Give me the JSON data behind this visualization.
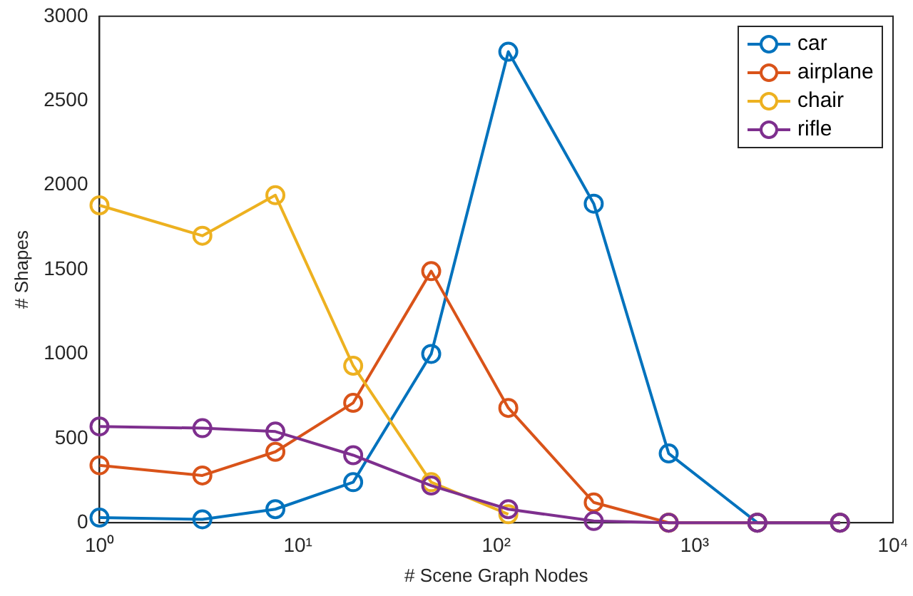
{
  "chart_data": {
    "type": "line",
    "xlabel": "# Scene Graph Nodes",
    "ylabel": "# Shapes",
    "x": [
      1,
      3.3,
      7.7,
      19,
      47,
      115,
      310,
      740,
      2070,
      5400
    ],
    "series": [
      {
        "name": "car",
        "color": "#0072bd",
        "values": [
          30,
          20,
          80,
          240,
          1000,
          2790,
          1890,
          410,
          0,
          0
        ]
      },
      {
        "name": "airplane",
        "color": "#d95319",
        "values": [
          340,
          280,
          420,
          710,
          1490,
          680,
          120,
          0,
          0,
          0
        ]
      },
      {
        "name": "chair",
        "color": "#edb120",
        "values": [
          1880,
          1700,
          1940,
          930,
          240,
          50,
          null,
          0,
          null,
          null
        ]
      },
      {
        "name": "rifle",
        "color": "#7e2f8e",
        "values": [
          570,
          560,
          540,
          400,
          220,
          80,
          10,
          0,
          0,
          0
        ]
      }
    ],
    "log": "x",
    "xlim": [
      1,
      10000
    ],
    "xticks": [
      {
        "value": 1,
        "label": "10⁰"
      },
      {
        "value": 10,
        "label": "10¹"
      },
      {
        "value": 100,
        "label": "10²"
      },
      {
        "value": 1000,
        "label": "10³"
      },
      {
        "value": 10000,
        "label": "10⁴"
      }
    ],
    "ylim": [
      0,
      3000
    ],
    "yticks": [
      0,
      500,
      1000,
      1500,
      2000,
      2500,
      3000
    ],
    "grid": false,
    "legend": "top right",
    "marker": "circle",
    "line_style": "solid"
  }
}
